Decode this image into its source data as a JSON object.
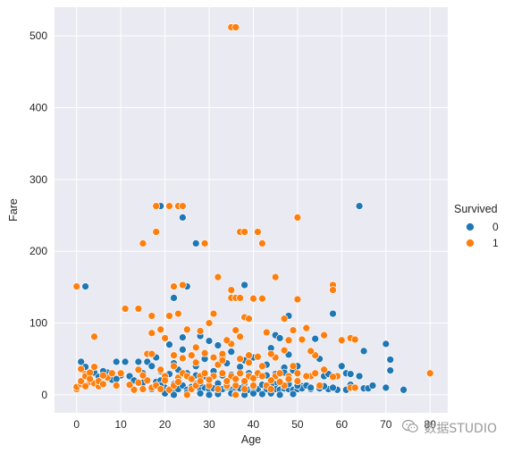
{
  "chart_data": {
    "type": "scatter",
    "xlabel": "Age",
    "ylabel": "Fare",
    "xlim": [
      -5,
      84
    ],
    "ylim": [
      -25,
      540
    ],
    "xticks": [
      0,
      10,
      20,
      30,
      40,
      50,
      60,
      70,
      80
    ],
    "yticks": [
      0,
      100,
      200,
      300,
      400,
      500
    ],
    "grid": true,
    "legend": {
      "title": "Survived",
      "position": "right"
    },
    "series": [
      {
        "name": "0",
        "color": "#1f77b4",
        "points": [
          [
            19,
            263
          ],
          [
            24,
            247
          ],
          [
            27,
            211
          ],
          [
            37,
            227
          ],
          [
            64,
            263
          ],
          [
            22,
            135
          ],
          [
            25,
            151
          ],
          [
            38,
            153
          ],
          [
            2,
            151
          ],
          [
            58,
            113
          ],
          [
            45,
            83
          ],
          [
            48,
            110
          ],
          [
            36,
            90
          ],
          [
            30,
            75
          ],
          [
            65,
            61
          ],
          [
            71,
            49
          ],
          [
            71,
            34
          ],
          [
            70,
            71
          ],
          [
            74,
            7
          ],
          [
            55,
            50
          ],
          [
            40,
            52
          ],
          [
            35,
            60
          ],
          [
            42,
            26
          ],
          [
            56,
            26
          ],
          [
            47,
            38
          ],
          [
            61,
            30
          ],
          [
            62,
            29
          ],
          [
            28,
            82
          ],
          [
            33,
            53
          ],
          [
            46,
            79
          ],
          [
            50,
            40
          ],
          [
            54,
            78
          ],
          [
            39,
            30
          ],
          [
            64,
            26
          ],
          [
            65,
            9
          ],
          [
            70,
            10
          ],
          [
            60,
            40
          ],
          [
            51,
            12
          ],
          [
            45,
            15
          ],
          [
            1,
            46
          ],
          [
            2,
            39
          ],
          [
            3,
            29
          ],
          [
            4,
            31
          ],
          [
            5,
            25
          ],
          [
            7,
            31
          ],
          [
            8,
            21
          ],
          [
            9,
            46
          ],
          [
            10,
            27
          ],
          [
            11,
            46
          ],
          [
            12,
            26
          ],
          [
            14,
            46
          ],
          [
            16,
            46
          ],
          [
            17,
            8
          ],
          [
            18,
            18
          ],
          [
            19,
            20
          ],
          [
            20,
            10
          ],
          [
            21,
            8
          ],
          [
            22,
            9
          ],
          [
            23,
            8
          ],
          [
            24,
            13
          ],
          [
            25,
            7
          ],
          [
            26,
            8
          ],
          [
            27,
            15
          ],
          [
            28,
            8
          ],
          [
            29,
            10
          ],
          [
            30,
            8
          ],
          [
            31,
            9
          ],
          [
            32,
            7
          ],
          [
            33,
            8
          ],
          [
            34,
            13
          ],
          [
            35,
            7
          ],
          [
            36,
            8
          ],
          [
            37,
            9
          ],
          [
            38,
            8
          ],
          [
            39,
            7
          ],
          [
            40,
            9
          ],
          [
            41,
            8
          ],
          [
            42,
            14
          ],
          [
            43,
            8
          ],
          [
            44,
            9
          ],
          [
            45,
            8
          ],
          [
            46,
            7
          ],
          [
            47,
            9
          ],
          [
            48,
            8
          ],
          [
            49,
            7
          ],
          [
            50,
            8
          ],
          [
            51,
            9
          ],
          [
            52,
            13
          ],
          [
            53,
            8
          ],
          [
            55,
            9
          ],
          [
            57,
            8
          ],
          [
            59,
            7
          ],
          [
            61,
            7
          ],
          [
            63,
            9
          ],
          [
            66,
            9
          ],
          [
            20,
            2
          ],
          [
            22,
            0
          ],
          [
            25,
            3
          ],
          [
            28,
            2
          ],
          [
            30,
            0
          ],
          [
            32,
            1
          ],
          [
            35,
            2
          ],
          [
            36,
            1
          ],
          [
            38,
            0
          ],
          [
            40,
            2
          ],
          [
            42,
            1
          ],
          [
            44,
            2
          ],
          [
            46,
            0
          ],
          [
            49,
            1
          ],
          [
            19,
            33
          ],
          [
            21,
            29
          ],
          [
            23,
            35
          ],
          [
            25,
            30
          ],
          [
            27,
            27
          ],
          [
            29,
            26
          ],
          [
            31,
            33
          ],
          [
            33,
            27
          ],
          [
            35,
            28
          ],
          [
            37,
            39
          ],
          [
            39,
            26
          ],
          [
            41,
            28
          ],
          [
            43,
            27
          ],
          [
            45,
            29
          ],
          [
            47,
            31
          ],
          [
            49,
            34
          ],
          [
            18,
            52
          ],
          [
            26,
            55
          ],
          [
            32,
            69
          ],
          [
            24,
            80
          ],
          [
            21,
            70
          ],
          [
            15,
            30
          ],
          [
            13,
            20
          ],
          [
            6,
            33
          ],
          [
            9,
            22
          ],
          [
            15,
            17
          ],
          [
            19,
            13
          ],
          [
            22,
            15
          ],
          [
            26,
            11
          ],
          [
            28,
            16
          ],
          [
            30,
            14
          ],
          [
            32,
            16
          ],
          [
            34,
            11
          ],
          [
            36,
            15
          ],
          [
            38,
            16
          ],
          [
            40,
            11
          ],
          [
            44,
            14
          ],
          [
            48,
            15
          ],
          [
            50,
            13
          ],
          [
            53,
            10
          ],
          [
            56,
            12
          ],
          [
            58,
            10
          ],
          [
            62,
            14
          ],
          [
            67,
            13
          ],
          [
            38,
            48
          ],
          [
            43,
            42
          ],
          [
            27,
            40
          ],
          [
            34,
            44
          ],
          [
            29,
            50
          ],
          [
            24,
            63
          ],
          [
            22,
            44
          ],
          [
            17,
            40
          ],
          [
            52,
            26
          ],
          [
            57,
            29
          ],
          [
            48,
            56
          ],
          [
            44,
            65
          ]
        ]
      },
      {
        "name": "1",
        "color": "#ff7f0e",
        "points": [
          [
            35,
            512
          ],
          [
            36,
            512
          ],
          [
            18,
            263
          ],
          [
            21,
            263
          ],
          [
            23,
            263
          ],
          [
            24,
            263
          ],
          [
            50,
            247
          ],
          [
            15,
            211
          ],
          [
            29,
            211
          ],
          [
            37,
            227
          ],
          [
            38,
            227
          ],
          [
            41,
            227
          ],
          [
            42,
            211
          ],
          [
            18,
            227
          ],
          [
            32,
            164
          ],
          [
            45,
            164
          ],
          [
            24,
            153
          ],
          [
            58,
            153
          ],
          [
            58,
            146
          ],
          [
            22,
            151
          ],
          [
            35,
            146
          ],
          [
            35,
            135
          ],
          [
            36,
            135
          ],
          [
            37,
            135
          ],
          [
            40,
            134
          ],
          [
            42,
            134
          ],
          [
            50,
            133
          ],
          [
            0,
            151
          ],
          [
            11,
            120
          ],
          [
            14,
            120
          ],
          [
            17,
            110
          ],
          [
            21,
            110
          ],
          [
            23,
            113
          ],
          [
            31,
            113
          ],
          [
            38,
            108
          ],
          [
            39,
            106
          ],
          [
            36,
            90
          ],
          [
            30,
            100
          ],
          [
            47,
            106
          ],
          [
            49,
            90
          ],
          [
            52,
            93
          ],
          [
            48,
            76
          ],
          [
            60,
            76
          ],
          [
            4,
            81
          ],
          [
            25,
            91
          ],
          [
            28,
            89
          ],
          [
            19,
            91
          ],
          [
            16,
            57
          ],
          [
            17,
            57
          ],
          [
            22,
            55
          ],
          [
            26,
            55
          ],
          [
            33,
            57
          ],
          [
            39,
            55
          ],
          [
            45,
            52
          ],
          [
            54,
            55
          ],
          [
            62,
            79
          ],
          [
            63,
            77
          ],
          [
            37,
            81
          ],
          [
            43,
            87
          ],
          [
            51,
            77
          ],
          [
            47,
            62
          ],
          [
            56,
            83
          ],
          [
            53,
            61
          ],
          [
            35,
            71
          ],
          [
            17,
            86
          ],
          [
            20,
            79
          ],
          [
            27,
            66
          ],
          [
            31,
            52
          ],
          [
            34,
            76
          ],
          [
            41,
            53
          ],
          [
            44,
            57
          ],
          [
            80,
            30
          ],
          [
            62,
            10
          ],
          [
            63,
            10
          ],
          [
            59,
            26
          ],
          [
            53,
            26
          ],
          [
            0,
            8
          ],
          [
            0,
            11
          ],
          [
            1,
            15
          ],
          [
            1,
            19
          ],
          [
            1,
            36
          ],
          [
            2,
            29
          ],
          [
            2,
            26
          ],
          [
            3,
            18
          ],
          [
            3,
            31
          ],
          [
            4,
            16
          ],
          [
            4,
            39
          ],
          [
            5,
            12
          ],
          [
            5,
            19
          ],
          [
            6,
            15
          ],
          [
            7,
            24
          ],
          [
            8,
            30
          ],
          [
            9,
            13
          ],
          [
            13,
            7
          ],
          [
            14,
            17
          ],
          [
            15,
            8
          ],
          [
            16,
            20
          ],
          [
            17,
            10
          ],
          [
            18,
            13
          ],
          [
            19,
            8
          ],
          [
            20,
            26
          ],
          [
            21,
            7
          ],
          [
            22,
            13
          ],
          [
            23,
            24
          ],
          [
            24,
            30
          ],
          [
            25,
            26
          ],
          [
            26,
            8
          ],
          [
            27,
            13
          ],
          [
            28,
            26
          ],
          [
            29,
            30
          ],
          [
            30,
            13
          ],
          [
            31,
            26
          ],
          [
            32,
            8
          ],
          [
            33,
            30
          ],
          [
            34,
            13
          ],
          [
            35,
            26
          ],
          [
            36,
            13
          ],
          [
            37,
            30
          ],
          [
            38,
            8
          ],
          [
            39,
            26
          ],
          [
            40,
            13
          ],
          [
            41,
            30
          ],
          [
            42,
            26
          ],
          [
            43,
            13
          ],
          [
            44,
            8
          ],
          [
            45,
            26
          ],
          [
            46,
            30
          ],
          [
            47,
            13
          ],
          [
            48,
            26
          ],
          [
            49,
            40
          ],
          [
            50,
            30
          ],
          [
            52,
            26
          ],
          [
            54,
            30
          ],
          [
            58,
            25
          ],
          [
            56,
            35
          ],
          [
            55,
            13
          ],
          [
            36,
            0
          ],
          [
            25,
            0
          ],
          [
            19,
            35
          ],
          [
            22,
            40
          ],
          [
            27,
            45
          ],
          [
            32,
            42
          ],
          [
            37,
            50
          ],
          [
            42,
            40
          ],
          [
            24,
            51
          ],
          [
            29,
            58
          ],
          [
            33,
            48
          ],
          [
            39,
            45
          ],
          [
            20,
            20
          ],
          [
            23,
            18
          ],
          [
            26,
            22
          ],
          [
            28,
            19
          ],
          [
            30,
            21
          ],
          [
            34,
            19
          ],
          [
            36,
            22
          ],
          [
            38,
            19
          ],
          [
            40,
            23
          ],
          [
            44,
            20
          ],
          [
            46,
            18
          ],
          [
            48,
            22
          ],
          [
            50,
            19
          ],
          [
            15,
            27
          ],
          [
            14,
            35
          ],
          [
            12,
            14
          ],
          [
            10,
            30
          ],
          [
            6,
            27
          ],
          [
            2,
            12
          ],
          [
            3,
            22
          ]
        ]
      }
    ]
  },
  "watermark": {
    "text": "数据STUDIO",
    "icon": "wechat-icon",
    "color": "#9a9a9a"
  }
}
